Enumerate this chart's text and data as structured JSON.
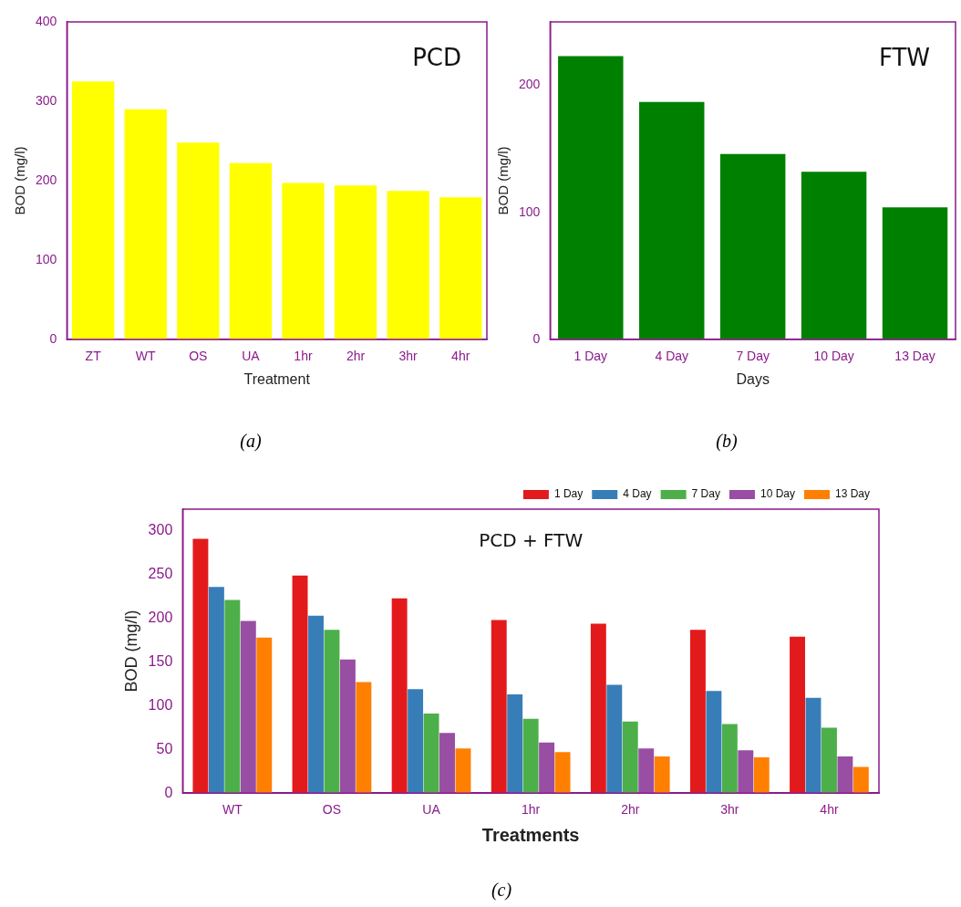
{
  "chart_data": [
    {
      "type": "bar",
      "title": "PCD",
      "xlabel": "Treatment",
      "ylabel": "BOD (mg/l)",
      "categories": [
        "ZT",
        "WT",
        "OS",
        "UA",
        "1hr",
        "2hr",
        "3hr",
        "4hr"
      ],
      "values": [
        325,
        290,
        248,
        222,
        197,
        194,
        187,
        179
      ],
      "color": "#ffff00",
      "ylim": [
        0,
        400
      ],
      "yticks": [
        0,
        100,
        200,
        300,
        400
      ],
      "grid": false,
      "legend": false,
      "annotations": [
        "(a)"
      ]
    },
    {
      "type": "bar",
      "title": "FTW",
      "xlabel": "Days",
      "ylabel": "BOD (mg/l)",
      "categories": [
        "1 Day",
        "4 Day",
        "7 Day",
        "10 Day",
        "13 Day"
      ],
      "values": [
        223,
        187,
        146,
        132,
        104
      ],
      "color": "#008000",
      "ylim": [
        0,
        250
      ],
      "yticks": [
        0,
        100,
        200
      ],
      "grid": false,
      "legend": false,
      "annotations": [
        "(b)"
      ]
    },
    {
      "type": "bar",
      "title": "PCD + FTW",
      "xlabel": "Treatments",
      "ylabel": "BOD (mg/l)",
      "categories": [
        "WT",
        "OS",
        "UA",
        "1hr",
        "2hr",
        "3hr",
        "4hr"
      ],
      "series": [
        {
          "name": "1 Day",
          "color": "#e31a1c",
          "values": [
            291,
            249,
            223,
            198,
            194,
            187,
            179
          ]
        },
        {
          "name": "4 Day",
          "color": "#377eb8",
          "values": [
            236,
            203,
            119,
            113,
            124,
            117,
            109
          ]
        },
        {
          "name": "7 Day",
          "color": "#4daf4a",
          "values": [
            221,
            187,
            91,
            85,
            82,
            79,
            75
          ]
        },
        {
          "name": "10 Day",
          "color": "#984ea3",
          "values": [
            197,
            153,
            69,
            58,
            51,
            49,
            42
          ]
        },
        {
          "name": "13 Day",
          "color": "#ff7f00",
          "values": [
            178,
            127,
            51,
            47,
            42,
            41,
            30
          ]
        }
      ],
      "ylim": [
        0,
        325
      ],
      "yticks": [
        0,
        50,
        100,
        150,
        200,
        250,
        300
      ],
      "grid": false,
      "legend": "top right",
      "annotations": [
        "(c)"
      ]
    }
  ]
}
